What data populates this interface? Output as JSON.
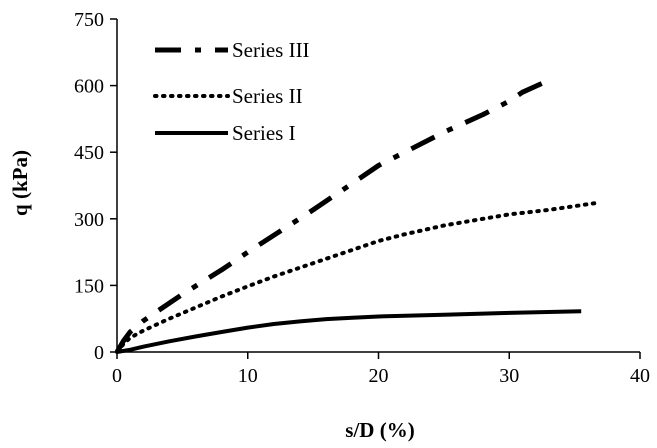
{
  "chart_data": {
    "type": "line",
    "xlabel": "s/D (%)",
    "ylabel": "q (kPa)",
    "xlim": [
      0,
      40
    ],
    "ylim": [
      0,
      750
    ],
    "xticks": [
      0,
      10,
      20,
      30,
      40
    ],
    "yticks": [
      0,
      150,
      300,
      450,
      600,
      750
    ],
    "grid": false,
    "legend": "top-left",
    "series": [
      {
        "name": "Series III",
        "style": "long-dash-dot",
        "color": "#000000",
        "x": [
          0,
          0.5,
          1,
          2,
          3,
          5,
          8,
          10,
          15,
          18,
          20,
          22,
          25,
          28,
          30,
          31,
          32.5
        ],
        "y": [
          0,
          25,
          45,
          70,
          90,
          130,
          185,
          225,
          320,
          380,
          420,
          450,
          495,
          535,
          565,
          585,
          605
        ]
      },
      {
        "name": "Series II",
        "style": "dotted",
        "color": "#000000",
        "x": [
          0,
          0.5,
          1,
          2,
          4,
          6,
          8,
          10,
          12,
          15,
          18,
          20,
          22,
          25,
          28,
          30,
          33,
          36.5
        ],
        "y": [
          0,
          18,
          32,
          48,
          75,
          100,
          125,
          148,
          170,
          200,
          230,
          250,
          265,
          285,
          300,
          310,
          320,
          335
        ]
      },
      {
        "name": "Series I",
        "style": "solid",
        "color": "#000000",
        "x": [
          0,
          1,
          2,
          4,
          6,
          8,
          10,
          12,
          14,
          16,
          18,
          20,
          25,
          30,
          35.5
        ],
        "y": [
          0,
          5,
          12,
          24,
          35,
          45,
          55,
          63,
          69,
          74,
          77,
          80,
          84,
          88,
          92
        ]
      }
    ]
  }
}
